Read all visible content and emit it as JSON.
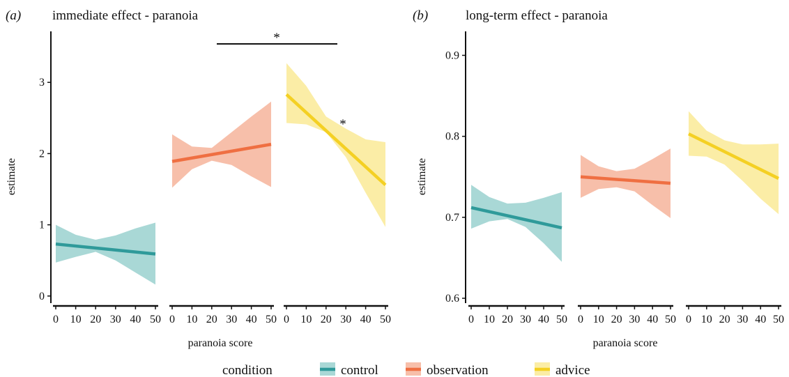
{
  "chart_data": [
    {
      "type": "line",
      "panel_label": "(a)",
      "title": "immediate effect - paranoia",
      "xlabel": "paranoia score",
      "ylabel": "estimate",
      "ylim": [
        -0.1,
        3.55
      ],
      "yticks": [
        "0",
        "1",
        "2",
        "3"
      ],
      "xlim": [
        0,
        50
      ],
      "xticks": [
        "0",
        "10",
        "20",
        "30",
        "40",
        "50"
      ],
      "facets": [
        "control",
        "observation",
        "advice"
      ],
      "series": [
        {
          "name": "control",
          "x": [
            0,
            50
          ],
          "y": [
            0.73,
            0.59
          ],
          "ci_x": [
            0,
            10,
            20,
            30,
            40,
            50
          ],
          "ci_lower": [
            0.47,
            0.55,
            0.62,
            0.5,
            0.33,
            0.16
          ],
          "ci_upper": [
            1.0,
            0.86,
            0.79,
            0.85,
            0.95,
            1.03
          ]
        },
        {
          "name": "observation",
          "x": [
            0,
            50
          ],
          "y": [
            1.89,
            2.13
          ],
          "ci_x": [
            0,
            10,
            20,
            30,
            40,
            50
          ],
          "ci_lower": [
            1.52,
            1.78,
            1.9,
            1.84,
            1.68,
            1.53
          ],
          "ci_upper": [
            2.27,
            2.1,
            2.08,
            2.3,
            2.52,
            2.73
          ]
        },
        {
          "name": "advice",
          "x": [
            0,
            50
          ],
          "y": [
            2.83,
            1.56
          ],
          "ci_x": [
            0,
            10,
            20,
            30,
            40,
            50
          ],
          "ci_lower": [
            2.43,
            2.41,
            2.3,
            1.95,
            1.45,
            0.97
          ],
          "ci_upper": [
            3.27,
            2.95,
            2.52,
            2.35,
            2.2,
            2.16
          ]
        }
      ],
      "annotations": [
        {
          "text": "*",
          "type": "bracket",
          "from": "observation",
          "to": "advice"
        },
        {
          "text": "*",
          "type": "slope",
          "series": "advice"
        }
      ]
    },
    {
      "type": "line",
      "panel_label": "(b)",
      "title": "long-term effect - paranoia",
      "xlabel": "paranoia score",
      "ylabel": "estimate",
      "ylim": [
        0.594,
        0.915
      ],
      "yticks": [
        "0.6",
        "0.7",
        "0.8",
        "0.9"
      ],
      "xlim": [
        0,
        50
      ],
      "xticks": [
        "0",
        "10",
        "20",
        "30",
        "40",
        "50"
      ],
      "facets": [
        "control",
        "observation",
        "advice"
      ],
      "series": [
        {
          "name": "control",
          "x": [
            0,
            50
          ],
          "y": [
            0.712,
            0.687
          ],
          "ci_x": [
            0,
            10,
            20,
            30,
            40,
            50
          ],
          "ci_lower": [
            0.686,
            0.695,
            0.698,
            0.688,
            0.668,
            0.645
          ],
          "ci_upper": [
            0.74,
            0.725,
            0.717,
            0.718,
            0.724,
            0.731
          ]
        },
        {
          "name": "observation",
          "x": [
            0,
            50
          ],
          "y": [
            0.75,
            0.742
          ],
          "ci_x": [
            0,
            10,
            20,
            30,
            40,
            50
          ],
          "ci_lower": [
            0.724,
            0.735,
            0.737,
            0.732,
            0.715,
            0.699
          ],
          "ci_upper": [
            0.777,
            0.763,
            0.757,
            0.76,
            0.772,
            0.785
          ]
        },
        {
          "name": "advice",
          "x": [
            0,
            50
          ],
          "y": [
            0.803,
            0.748
          ],
          "ci_x": [
            0,
            10,
            20,
            30,
            40,
            50
          ],
          "ci_lower": [
            0.776,
            0.775,
            0.765,
            0.745,
            0.723,
            0.704
          ],
          "ci_upper": [
            0.831,
            0.807,
            0.795,
            0.79,
            0.79,
            0.791
          ]
        }
      ],
      "annotations": []
    }
  ],
  "legend": {
    "title": "condition",
    "position": "bottom",
    "items": [
      {
        "name": "control",
        "line_color": "#2f9a9a",
        "fill_color": "#a9d8d6"
      },
      {
        "name": "observation",
        "line_color": "#ef6f42",
        "fill_color": "#f7bfaa"
      },
      {
        "name": "advice",
        "line_color": "#f4d023",
        "fill_color": "#fbeda6"
      }
    ]
  }
}
